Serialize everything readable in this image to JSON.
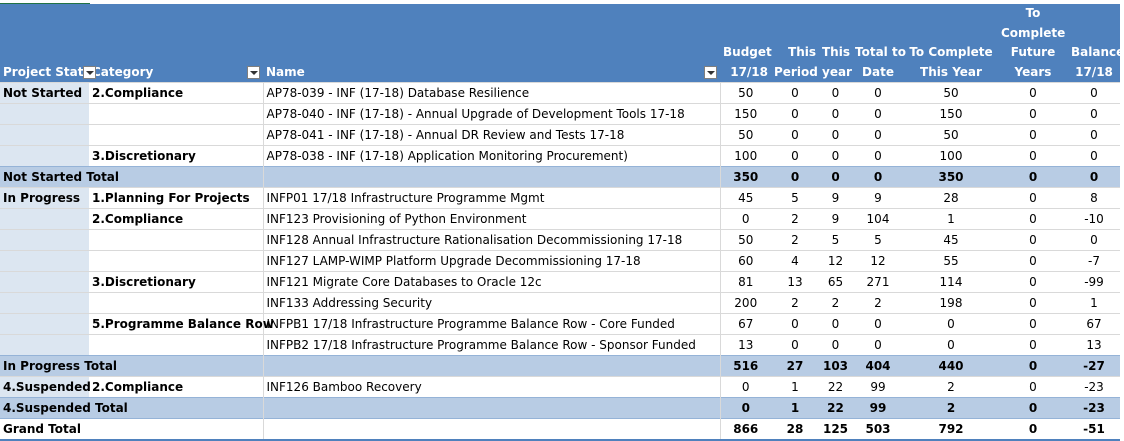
{
  "headers": {
    "project_status": "Project Stat",
    "category": "Category",
    "name": "Name",
    "budget": [
      "Budget",
      "17/18"
    ],
    "this_period": [
      "This",
      "Period"
    ],
    "this_year": [
      "This",
      "year"
    ],
    "total_to_date": [
      "Total to",
      "Date"
    ],
    "to_complete_this_year": [
      "To Complete",
      "This Year"
    ],
    "to_complete_future_years": [
      "To",
      "Complete",
      "Future",
      "Years"
    ],
    "balance": [
      "Balance",
      "17/18"
    ]
  },
  "rows": [
    {
      "type": "data",
      "status": "Not Started",
      "category": "2.Compliance",
      "name": "AP78-039 - INF (17-18) Database Resilience",
      "v": [
        "50",
        "0",
        "0",
        "0",
        "50",
        "0",
        "0"
      ]
    },
    {
      "type": "data",
      "status": "",
      "category": "",
      "name": "AP78-040 - INF (17-18) - Annual Upgrade of Development Tools 17-18",
      "v": [
        "150",
        "0",
        "0",
        "0",
        "150",
        "0",
        "0"
      ]
    },
    {
      "type": "data",
      "status": "",
      "category": "",
      "name": "AP78-041 - INF (17-18) - Annual DR Review and Tests 17-18",
      "v": [
        "50",
        "0",
        "0",
        "0",
        "50",
        "0",
        "0"
      ]
    },
    {
      "type": "data",
      "status": "",
      "category": "3.Discretionary",
      "name": "AP78-038 - INF (17-18) Application Monitoring Procurement)",
      "v": [
        "100",
        "0",
        "0",
        "0",
        "100",
        "0",
        "0"
      ]
    },
    {
      "type": "total",
      "status": "Not Started Total",
      "category": "",
      "name": "",
      "v": [
        "350",
        "0",
        "0",
        "0",
        "350",
        "0",
        "0"
      ]
    },
    {
      "type": "data",
      "status": "In Progress",
      "category": "1.Planning For Projects",
      "name": "INFP01 17/18 Infrastructure Programme Mgmt",
      "v": [
        "45",
        "5",
        "9",
        "9",
        "28",
        "0",
        "8"
      ]
    },
    {
      "type": "data",
      "status": "",
      "category": "2.Compliance",
      "name": "INF123 Provisioning of Python Environment",
      "v": [
        "0",
        "2",
        "9",
        "104",
        "1",
        "0",
        "-10"
      ]
    },
    {
      "type": "data",
      "status": "",
      "category": "",
      "name": "INF128 Annual Infrastructure Rationalisation Decommissioning 17-18",
      "v": [
        "50",
        "2",
        "5",
        "5",
        "45",
        "0",
        "0"
      ]
    },
    {
      "type": "data",
      "status": "",
      "category": "",
      "name": "INF127 LAMP-WIMP Platform Upgrade Decommissioning 17-18",
      "v": [
        "60",
        "4",
        "12",
        "12",
        "55",
        "0",
        "-7"
      ]
    },
    {
      "type": "data",
      "status": "",
      "category": "3.Discretionary",
      "name": "INF121 Migrate Core Databases to Oracle 12c",
      "v": [
        "81",
        "13",
        "65",
        "271",
        "114",
        "0",
        "-99"
      ]
    },
    {
      "type": "data",
      "status": "",
      "category": "",
      "name": "INF133 Addressing Security",
      "v": [
        "200",
        "2",
        "2",
        "2",
        "198",
        "0",
        "1"
      ]
    },
    {
      "type": "data",
      "status": "",
      "category": "5.Programme Balance Row",
      "name": "INFPB1 17/18 Infrastructure Programme Balance Row - Core Funded",
      "v": [
        "67",
        "0",
        "0",
        "0",
        "0",
        "0",
        "67"
      ]
    },
    {
      "type": "data",
      "status": "",
      "category": "",
      "name": "INFPB2 17/18 Infrastructure Programme Balance Row - Sponsor Funded",
      "v": [
        "13",
        "0",
        "0",
        "0",
        "0",
        "0",
        "13"
      ]
    },
    {
      "type": "total",
      "status": "In Progress Total",
      "category": "",
      "name": "",
      "v": [
        "516",
        "27",
        "103",
        "404",
        "440",
        "0",
        "-27"
      ]
    },
    {
      "type": "data",
      "status": "4.Suspended",
      "category": "2.Compliance",
      "name": "INF126 Bamboo Recovery",
      "v": [
        "0",
        "1",
        "22",
        "99",
        "2",
        "0",
        "-23"
      ]
    },
    {
      "type": "total",
      "status": "4.Suspended Total",
      "category": "",
      "name": "",
      "v": [
        "0",
        "1",
        "22",
        "99",
        "2",
        "0",
        "-23"
      ]
    },
    {
      "type": "grand",
      "status": "Grand Total",
      "category": "",
      "name": "",
      "v": [
        "866",
        "28",
        "125",
        "503",
        "792",
        "0",
        "-51"
      ]
    }
  ]
}
